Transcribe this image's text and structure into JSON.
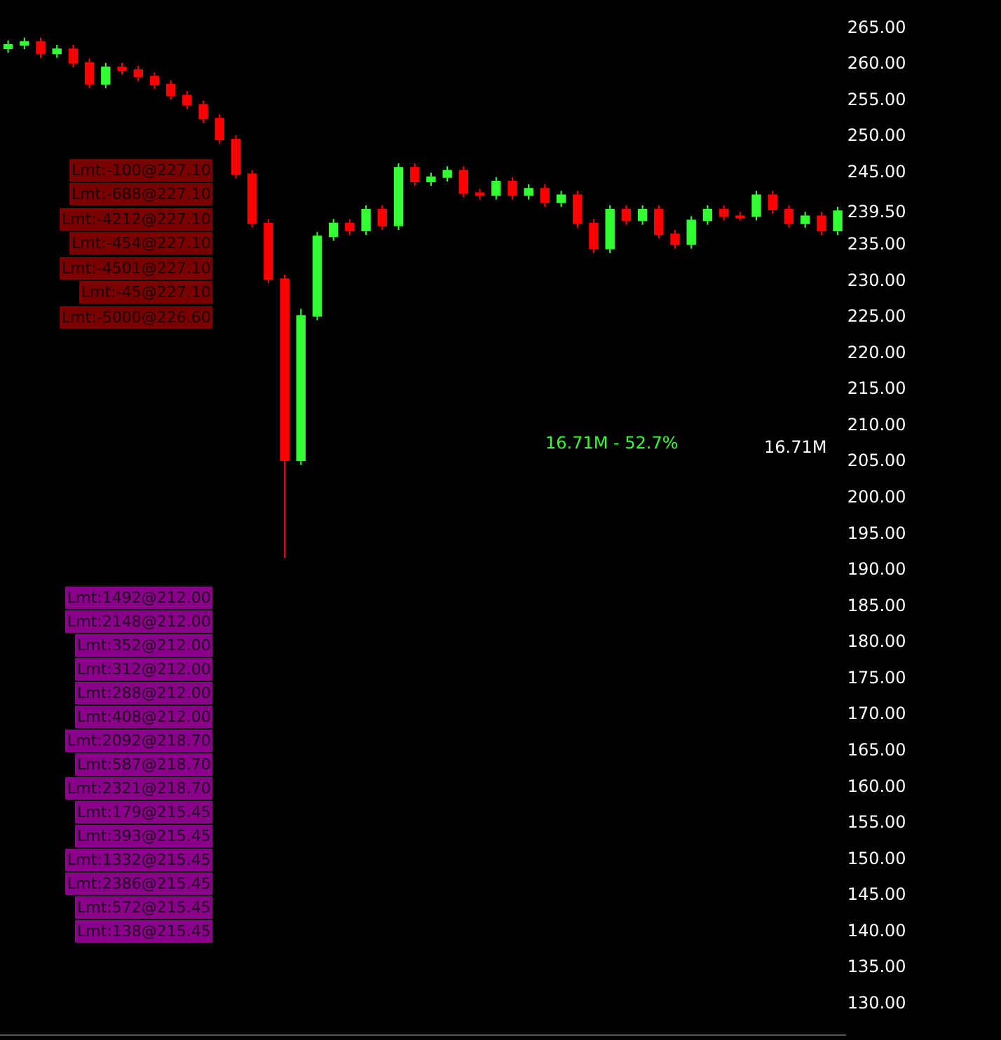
{
  "chart_data": {
    "type": "candlestick",
    "tick_labels": "y",
    "grid": false,
    "categories": [
      null,
      null,
      null,
      null,
      null,
      null,
      null,
      null,
      null,
      null,
      null,
      null,
      null,
      null,
      null,
      null,
      null,
      null,
      null,
      null,
      null,
      null,
      null,
      null,
      null,
      null,
      null,
      null,
      null,
      null,
      null,
      null,
      null,
      null,
      null,
      null,
      null,
      null,
      null,
      null,
      null,
      null,
      null,
      null,
      null,
      null,
      null,
      null,
      null,
      null,
      null,
      null
    ],
    "ohlc": [
      [
        262.0,
        263.1,
        261.4,
        262.5
      ],
      [
        262.5,
        263.5,
        261.9,
        262.9
      ],
      [
        262.9,
        263.5,
        260.7,
        261.3
      ],
      [
        261.3,
        262.5,
        260.7,
        261.9
      ],
      [
        261.9,
        262.5,
        259.4,
        260.0
      ],
      [
        260.0,
        260.6,
        256.5,
        257.1
      ],
      [
        257.1,
        260.0,
        256.5,
        259.4
      ],
      [
        259.4,
        260.0,
        258.4,
        259.0
      ],
      [
        259.0,
        259.6,
        257.5,
        258.1
      ],
      [
        258.1,
        258.7,
        256.4,
        257.0
      ],
      [
        257.0,
        257.6,
        254.9,
        255.5
      ],
      [
        255.5,
        256.1,
        253.6,
        254.2
      ],
      [
        254.2,
        254.8,
        251.7,
        252.3
      ],
      [
        252.3,
        252.9,
        248.8,
        249.4
      ],
      [
        249.4,
        250.0,
        244.0,
        244.6
      ],
      [
        244.6,
        245.2,
        237.2,
        237.8
      ],
      [
        237.8,
        238.4,
        229.5,
        230.1
      ],
      [
        230.1,
        230.7,
        191.5,
        205.0
      ],
      [
        205.0,
        226.0,
        204.4,
        225.0
      ],
      [
        225.0,
        236.6,
        224.4,
        236.0
      ],
      [
        236.0,
        238.4,
        235.4,
        237.8
      ],
      [
        237.8,
        238.4,
        236.2,
        236.8
      ],
      [
        236.8,
        240.3,
        236.2,
        239.7
      ],
      [
        239.7,
        240.3,
        236.9,
        237.5
      ],
      [
        237.5,
        246.1,
        236.9,
        245.5
      ],
      [
        245.5,
        246.1,
        243.0,
        243.6
      ],
      [
        243.6,
        244.8,
        243.0,
        244.2
      ],
      [
        244.2,
        245.7,
        243.6,
        245.1
      ],
      [
        245.1,
        245.7,
        241.4,
        242.0
      ],
      [
        242.0,
        242.6,
        241.1,
        241.7
      ],
      [
        241.7,
        244.2,
        241.1,
        243.6
      ],
      [
        243.6,
        244.2,
        241.1,
        241.7
      ],
      [
        241.7,
        243.2,
        241.1,
        242.6
      ],
      [
        242.6,
        243.2,
        240.1,
        240.7
      ],
      [
        240.7,
        242.3,
        240.1,
        241.7
      ],
      [
        241.7,
        242.3,
        237.2,
        237.8
      ],
      [
        237.8,
        238.4,
        233.7,
        234.3
      ],
      [
        234.3,
        240.3,
        233.7,
        239.7
      ],
      [
        239.7,
        240.3,
        237.6,
        238.2
      ],
      [
        238.2,
        240.3,
        237.6,
        239.7
      ],
      [
        239.7,
        240.3,
        235.7,
        236.3
      ],
      [
        236.3,
        236.9,
        234.3,
        234.9
      ],
      [
        234.9,
        238.8,
        234.3,
        238.2
      ],
      [
        238.2,
        240.3,
        237.6,
        239.7
      ],
      [
        239.7,
        240.3,
        238.2,
        238.8
      ],
      [
        238.8,
        239.4,
        238.2,
        238.6
      ],
      [
        238.8,
        242.3,
        238.2,
        241.7
      ],
      [
        241.7,
        242.3,
        239.1,
        239.7
      ],
      [
        239.7,
        240.3,
        237.2,
        237.8
      ],
      [
        237.8,
        239.4,
        237.2,
        238.8
      ],
      [
        238.8,
        239.4,
        236.2,
        236.8
      ],
      [
        236.8,
        240.1,
        236.2,
        239.5
      ]
    ],
    "colors": [
      "#33ff33",
      "#33ff33",
      "#ff0000",
      "#33ff33",
      "#ff0000",
      "#ff0000",
      "#33ff33",
      "#ff0000",
      "#ff0000",
      "#ff0000",
      "#ff0000",
      "#ff0000",
      "#ff0000",
      "#ff0000",
      "#ff0000",
      "#ff0000",
      "#ff0000",
      "#ff0000",
      "#33ff33",
      "#33ff33",
      "#33ff33",
      "#ff0000",
      "#33ff33",
      "#ff0000",
      "#33ff33",
      "#ff0000",
      "#33ff33",
      "#33ff33",
      "#ff0000",
      "#ff0000",
      "#33ff33",
      "#ff0000",
      "#33ff33",
      "#ff0000",
      "#33ff33",
      "#ff0000",
      "#ff0000",
      "#33ff33",
      "#ff0000",
      "#33ff33",
      "#ff0000",
      "#ff0000",
      "#33ff33",
      "#33ff33",
      "#ff0000",
      "#ff0000",
      "#33ff33",
      "#ff0000",
      "#ff0000",
      "#33ff33",
      "#ff0000",
      "#33ff33"
    ],
    "ylim": [
      125.6,
      268.7
    ],
    "yticks": [
      {
        "value": 130,
        "label": "130.00"
      },
      {
        "value": 135,
        "label": "135.00"
      },
      {
        "value": 140,
        "label": "140.00"
      },
      {
        "value": 145,
        "label": "145.00"
      },
      {
        "value": 150,
        "label": "150.00"
      },
      {
        "value": 155,
        "label": "155.00"
      },
      {
        "value": 160,
        "label": "160.00"
      },
      {
        "value": 165,
        "label": "165.00"
      },
      {
        "value": 170,
        "label": "170.00"
      },
      {
        "value": 175,
        "label": "175.00"
      },
      {
        "value": 180,
        "label": "180.00"
      },
      {
        "value": 185,
        "label": "185.00"
      },
      {
        "value": 190,
        "label": "190.00"
      },
      {
        "value": 195,
        "label": "195.00"
      },
      {
        "value": 200,
        "label": "200.00"
      },
      {
        "value": 205,
        "label": "205.00"
      },
      {
        "value": 210,
        "label": "210.00"
      },
      {
        "value": 215,
        "label": "215.00"
      },
      {
        "value": 220,
        "label": "220.00"
      },
      {
        "value": 225,
        "label": "225.00"
      },
      {
        "value": 230,
        "label": "230.00"
      },
      {
        "value": 235,
        "label": "235.00"
      },
      {
        "value": 239.5,
        "label": "239.50"
      },
      {
        "value": 245,
        "label": "245.00"
      },
      {
        "value": 250,
        "label": "250.00"
      },
      {
        "value": 255,
        "label": "255.00"
      },
      {
        "value": 260,
        "label": "260.00"
      },
      {
        "value": 265,
        "label": "265.00"
      }
    ],
    "annotations": [
      "Lmt:-100@227.10",
      "Lmt:-688@227.10",
      "Lmt:-4212@227.10",
      "Lmt:-454@227.10",
      "Lmt:-4501@227.10",
      "Lmt:-45@227.10",
      "Lmt:-5000@226.60",
      "Lmt:1492@212.00",
      "Lmt:2148@212.00",
      "Lmt:352@212.00",
      "Lmt:312@212.00",
      "Lmt:288@212.00",
      "Lmt:408@212.00",
      "Lmt:2092@218.70",
      "Lmt:587@218.70",
      "Lmt:2321@218.70",
      "Lmt:179@215.45",
      "Lmt:393@215.45",
      "Lmt:1332@215.45",
      "Lmt:2386@215.45",
      "Lmt:572@215.45",
      "Lmt:138@215.45",
      "16.71M - 52.7%",
      "16.71M"
    ]
  }
}
